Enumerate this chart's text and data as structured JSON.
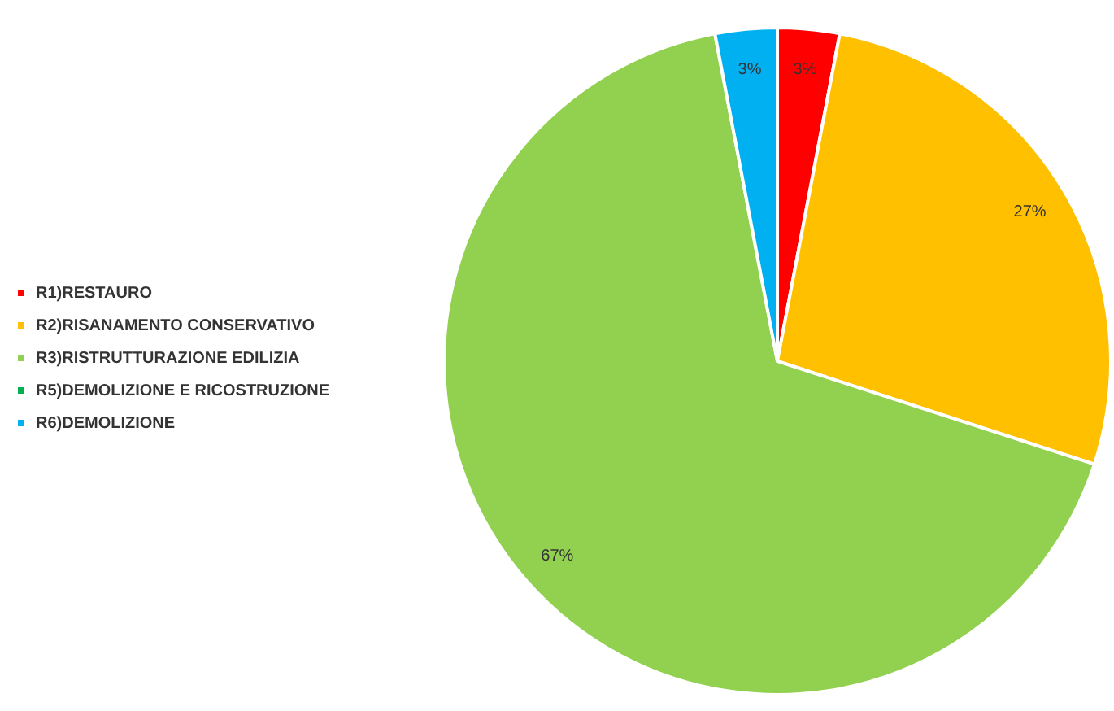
{
  "chart_data": {
    "type": "pie",
    "categories": [
      "R1)RESTAURO",
      "R2)RISANAMENTO CONSERVATIVO",
      "R3)RISTRUTTURAZIONE EDILIZIA",
      "R5)DEMOLIZIONE E RICOSTRUZIONE",
      "R6)DEMOLIZIONE"
    ],
    "values": [
      3,
      27,
      67,
      0,
      3
    ],
    "colors": [
      "#ff0000",
      "#ffc000",
      "#92d050",
      "#00b050",
      "#00b0f0"
    ],
    "value_labels": [
      "3%",
      "27%",
      "67%",
      null,
      "3%"
    ],
    "legend": "left"
  }
}
